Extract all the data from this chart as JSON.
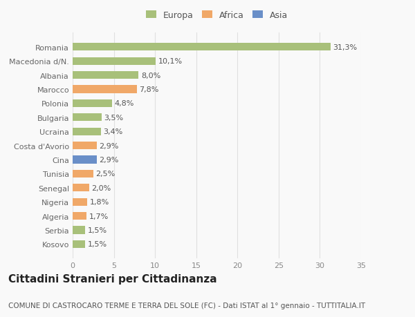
{
  "categories": [
    "Kosovo",
    "Serbia",
    "Algeria",
    "Nigeria",
    "Senegal",
    "Tunisia",
    "Cina",
    "Costa d'Avorio",
    "Ucraina",
    "Bulgaria",
    "Polonia",
    "Marocco",
    "Albania",
    "Macedonia d/N.",
    "Romania"
  ],
  "values": [
    1.5,
    1.5,
    1.7,
    1.8,
    2.0,
    2.5,
    2.9,
    2.9,
    3.4,
    3.5,
    4.8,
    7.8,
    8.0,
    10.1,
    31.3
  ],
  "labels": [
    "1,5%",
    "1,5%",
    "1,7%",
    "1,8%",
    "2,0%",
    "2,5%",
    "2,9%",
    "2,9%",
    "3,4%",
    "3,5%",
    "4,8%",
    "7,8%",
    "8,0%",
    "10,1%",
    "31,3%"
  ],
  "colors": [
    "#a8c07a",
    "#a8c07a",
    "#f0a868",
    "#f0a868",
    "#f0a868",
    "#f0a868",
    "#6a8fc8",
    "#f0a868",
    "#a8c07a",
    "#a8c07a",
    "#a8c07a",
    "#f0a868",
    "#a8c07a",
    "#a8c07a",
    "#a8c07a"
  ],
  "legend_labels": [
    "Europa",
    "Africa",
    "Asia"
  ],
  "legend_colors": [
    "#a8c07a",
    "#f0a868",
    "#6a8fc8"
  ],
  "title": "Cittadini Stranieri per Cittadinanza",
  "subtitle": "COMUNE DI CASTROCARO TERME E TERRA DEL SOLE (FC) - Dati ISTAT al 1° gennaio - TUTTITALIA.IT",
  "xlim": [
    0,
    35
  ],
  "xticks": [
    0,
    5,
    10,
    15,
    20,
    25,
    30,
    35
  ],
  "background_color": "#f9f9f9",
  "plot_background": "#f9f9f9",
  "grid_color": "#e0e0e0",
  "bar_height": 0.55,
  "label_fontsize": 8,
  "title_fontsize": 11,
  "subtitle_fontsize": 7.5,
  "tick_fontsize": 8,
  "legend_fontsize": 9,
  "ytick_fontsize": 8
}
